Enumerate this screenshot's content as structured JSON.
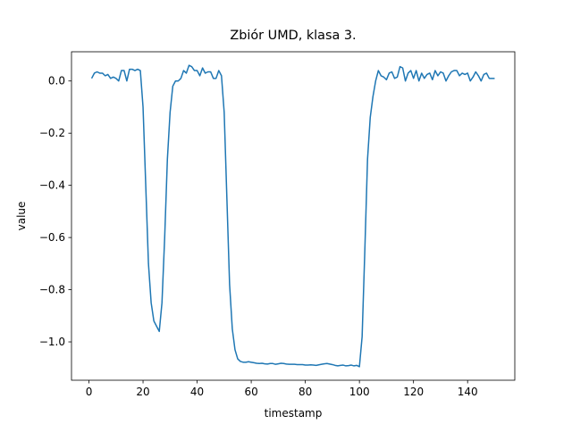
{
  "chart_data": {
    "type": "line",
    "title": "Zbiór UMD, klasa 3.",
    "x_label": "timestamp",
    "y_label": "value",
    "x": [
      1,
      2,
      3,
      4,
      5,
      6,
      7,
      8,
      9,
      10,
      11,
      12,
      13,
      14,
      15,
      16,
      17,
      18,
      19,
      20,
      21,
      22,
      23,
      24,
      25,
      26,
      27,
      28,
      29,
      30,
      31,
      32,
      33,
      34,
      35,
      36,
      37,
      38,
      39,
      40,
      41,
      42,
      43,
      44,
      45,
      46,
      47,
      48,
      49,
      50,
      51,
      52,
      53,
      54,
      55,
      56,
      57,
      58,
      59,
      60,
      61,
      62,
      63,
      64,
      65,
      66,
      67,
      68,
      69,
      70,
      71,
      72,
      73,
      74,
      75,
      76,
      77,
      78,
      79,
      80,
      81,
      82,
      83,
      84,
      85,
      86,
      87,
      88,
      89,
      90,
      91,
      92,
      93,
      94,
      95,
      96,
      97,
      98,
      99,
      100,
      101,
      102,
      103,
      104,
      105,
      106,
      107,
      108,
      109,
      110,
      111,
      112,
      113,
      114,
      115,
      116,
      117,
      118,
      119,
      120,
      121,
      122,
      123,
      124,
      125,
      126,
      127,
      128,
      129,
      130,
      131,
      132,
      133,
      134,
      135,
      136,
      137,
      138,
      139,
      140,
      141,
      142,
      143,
      144,
      145,
      146,
      147,
      148,
      149,
      150
    ],
    "series": [
      {
        "color": "#1f77b4",
        "values": [
          0.01,
          0.03,
          0.035,
          0.03,
          0.03,
          0.02,
          0.025,
          0.01,
          0.015,
          0.01,
          0.0,
          0.04,
          0.04,
          0.0,
          0.045,
          0.045,
          0.04,
          0.045,
          0.04,
          -0.1,
          -0.4,
          -0.7,
          -0.85,
          -0.92,
          -0.94,
          -0.96,
          -0.85,
          -0.6,
          -0.3,
          -0.12,
          -0.02,
          0.0,
          0.0,
          0.01,
          0.04,
          0.03,
          0.06,
          0.055,
          0.04,
          0.04,
          0.02,
          0.05,
          0.03,
          0.035,
          0.035,
          0.01,
          0.01,
          0.04,
          0.02,
          -0.12,
          -0.45,
          -0.78,
          -0.95,
          -1.03,
          -1.065,
          -1.075,
          -1.078,
          -1.078,
          -1.076,
          -1.078,
          -1.08,
          -1.082,
          -1.083,
          -1.082,
          -1.084,
          -1.085,
          -1.083,
          -1.083,
          -1.086,
          -1.084,
          -1.082,
          -1.083,
          -1.085,
          -1.086,
          -1.086,
          -1.086,
          -1.087,
          -1.087,
          -1.087,
          -1.089,
          -1.089,
          -1.088,
          -1.089,
          -1.09,
          -1.088,
          -1.086,
          -1.084,
          -1.083,
          -1.085,
          -1.087,
          -1.09,
          -1.092,
          -1.09,
          -1.089,
          -1.092,
          -1.091,
          -1.089,
          -1.092,
          -1.09,
          -1.095,
          -0.98,
          -0.65,
          -0.3,
          -0.14,
          -0.06,
          0.0,
          0.04,
          0.02,
          0.015,
          0.005,
          0.03,
          0.035,
          0.01,
          0.015,
          0.055,
          0.05,
          0.0,
          0.03,
          0.04,
          0.01,
          0.04,
          0.0,
          0.03,
          0.01,
          0.025,
          0.03,
          0.005,
          0.04,
          0.02,
          0.035,
          0.03,
          0.0,
          0.02,
          0.035,
          0.04,
          0.04,
          0.02,
          0.03,
          0.025,
          0.03,
          0.0,
          0.015,
          0.035,
          0.02,
          0.0,
          0.025,
          0.03,
          0.01,
          0.01,
          0.01
        ]
      }
    ],
    "xlim": [
      -6.45,
      157.45
    ],
    "ylim": [
      -1.147,
      0.112
    ],
    "xticks": [
      0,
      20,
      40,
      60,
      80,
      100,
      120,
      140
    ],
    "yticks": [
      {
        "value": -1.0,
        "label": "−1.0"
      },
      {
        "value": -0.8,
        "label": "−0.8"
      },
      {
        "value": -0.6,
        "label": "−0.6"
      },
      {
        "value": -0.4,
        "label": "−0.4"
      },
      {
        "value": -0.2,
        "label": "−0.2"
      },
      {
        "value": 0.0,
        "label": "0.0"
      }
    ],
    "grid": false
  }
}
